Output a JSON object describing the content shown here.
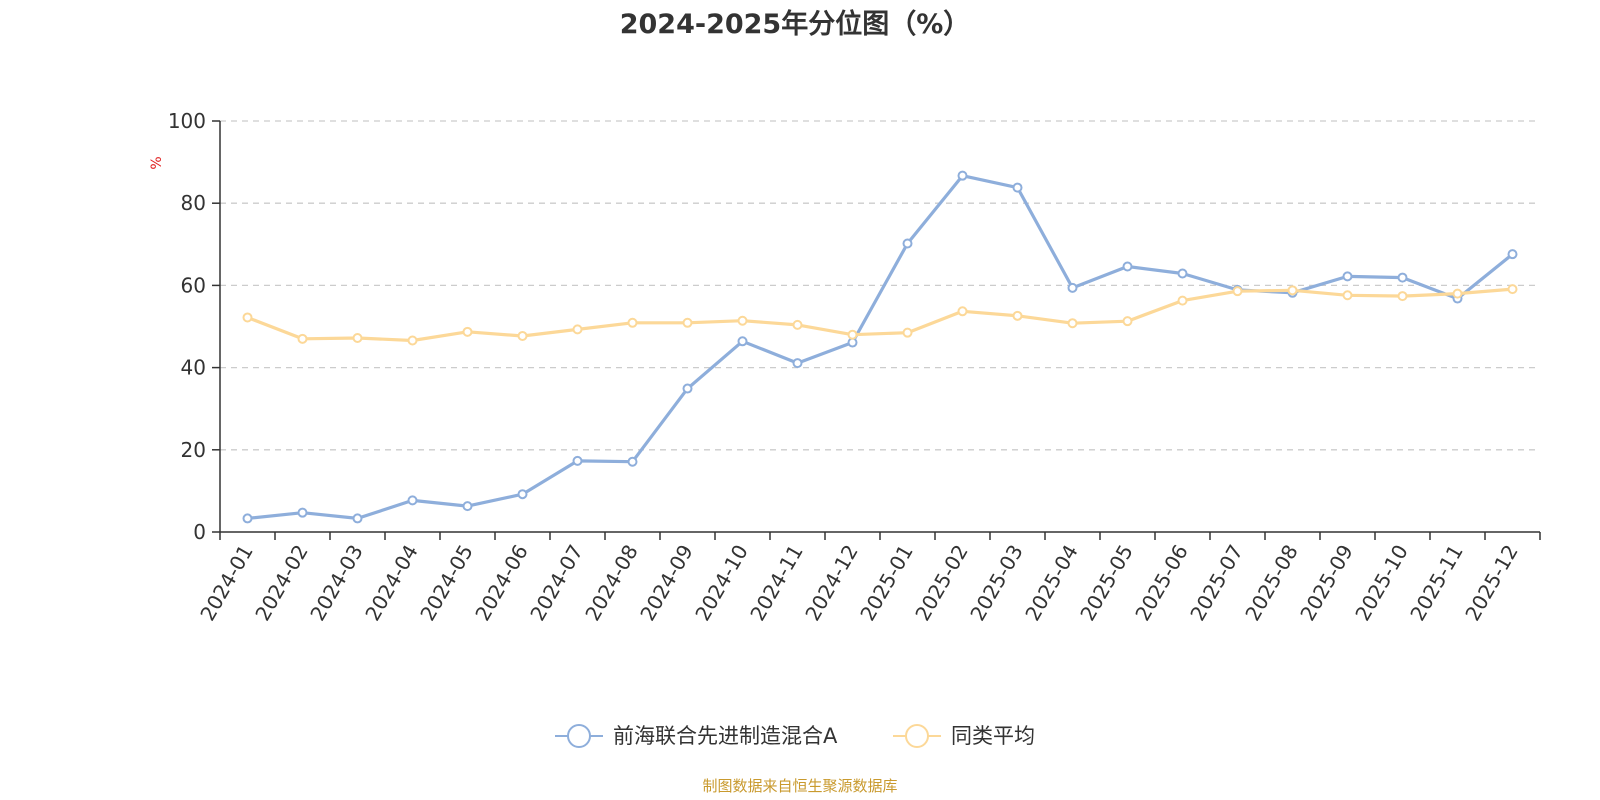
{
  "chart_data": {
    "type": "line",
    "title": "2024-2025年分位图（%）",
    "ylabel": "%",
    "xlabel": "",
    "ylim": [
      0,
      100
    ],
    "yticks": [
      0,
      20,
      40,
      60,
      80,
      100
    ],
    "grid": true,
    "legend_position": "bottom",
    "categories": [
      "2024-01",
      "2024-02",
      "2024-03",
      "2024-04",
      "2024-05",
      "2024-06",
      "2024-07",
      "2024-08",
      "2024-09",
      "2024-10",
      "2024-11",
      "2024-12",
      "2025-01",
      "2025-02",
      "2025-03",
      "2025-04",
      "2025-05",
      "2025-06",
      "2025-07",
      "2025-08",
      "2025-09",
      "2025-10",
      "2025-11",
      "2025-12"
    ],
    "series": [
      {
        "name": "前海联合先进制造混合A",
        "color": "#8eaedb",
        "values": [
          3.3,
          4.7,
          3.3,
          7.7,
          6.3,
          9.2,
          17.3,
          17.1,
          34.9,
          46.4,
          41.1,
          46.1,
          70.2,
          86.7,
          83.8,
          59.4,
          64.6,
          62.9,
          58.9,
          58.2,
          62.2,
          61.9,
          56.8,
          67.6
        ]
      },
      {
        "name": "同类平均",
        "color": "#fcd898",
        "values": [
          52.2,
          47.0,
          47.2,
          46.6,
          48.7,
          47.7,
          49.3,
          50.9,
          50.9,
          51.4,
          50.4,
          48.0,
          48.5,
          53.7,
          52.6,
          50.8,
          51.3,
          56.3,
          58.6,
          58.8,
          57.6,
          57.4,
          58.0,
          59.1
        ]
      }
    ],
    "source": "制图数据来自恒生聚源数据库"
  },
  "colors": {
    "axis": "#333333",
    "grid": "#cccccc",
    "unit": "#e02020",
    "source": "#c99a2e"
  }
}
